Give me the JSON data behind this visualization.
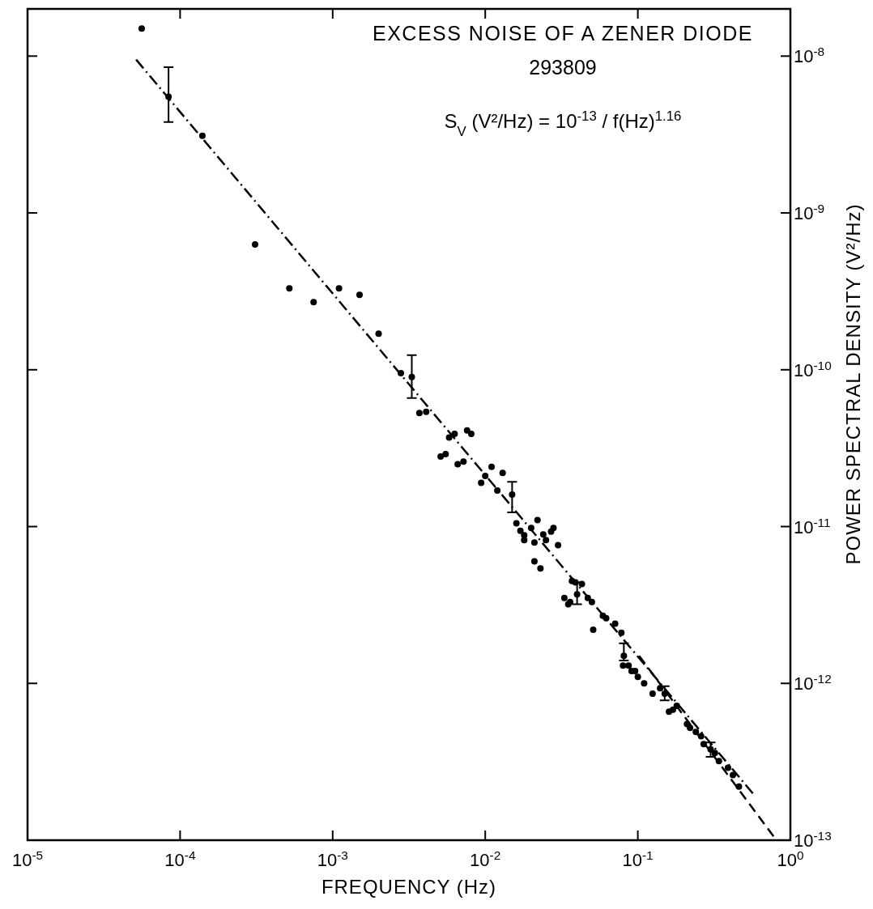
{
  "chart_data": {
    "type": "scatter",
    "title": "EXCESS NOISE OF A ZENER DIODE",
    "subtitle": "293809",
    "xlabel": "FREQUENCY (Hz)",
    "ylabel": "POWER SPECTRAL DENSITY (V²/Hz)",
    "annotations": [
      "S$_{V}$ (V²/Hz) = 10$^{-13}$ / f(Hz)$^{1.16}$"
    ],
    "log": "xy",
    "marker": "circle",
    "xlim": [
      1e-05,
      1
    ],
    "ylim": [
      1e-13,
      2e-08
    ],
    "xticks": [
      {
        "value": 1e-05,
        "label": "10$^{-5}$"
      },
      {
        "value": 0.0001,
        "label": "10$^{-4}$"
      },
      {
        "value": 0.001,
        "label": "10$^{-3}$"
      },
      {
        "value": 0.01,
        "label": "10$^{-2}$"
      },
      {
        "value": 0.1,
        "label": "10$^{-1}$"
      },
      {
        "value": 1,
        "label": "10$^{0}$"
      }
    ],
    "yticks": [
      {
        "value": 1e-13,
        "label": "10$^{-13}$"
      },
      {
        "value": 1e-12,
        "label": "10$^{-12}$"
      },
      {
        "value": 1e-11,
        "label": "10$^{-11}$"
      },
      {
        "value": 1e-10,
        "label": "10$^{-10}$"
      },
      {
        "value": 1e-09,
        "label": "10$^{-9}$"
      },
      {
        "value": 1e-08,
        "label": "10$^{-8}$"
      }
    ],
    "series": [
      {
        "color": "#000000",
        "x": [
          5.6e-05,
          0.00014,
          0.00031,
          0.00052,
          0.00075,
          0.0011,
          0.0015,
          0.002,
          0.0028,
          0.0037,
          0.0041,
          0.0051,
          0.0055,
          0.0058,
          0.0063,
          0.0066,
          0.0072,
          0.0076,
          0.0081,
          0.0094,
          0.01,
          0.011,
          0.012,
          0.013,
          0.016,
          0.017,
          0.018,
          0.018,
          0.02,
          0.021,
          0.021,
          0.022,
          0.023,
          0.024,
          0.025,
          0.027,
          0.028,
          0.03,
          0.033,
          0.035,
          0.036,
          0.037,
          0.039,
          0.043,
          0.047,
          0.05,
          0.051,
          0.059,
          0.062,
          0.071,
          0.078,
          0.08,
          0.087,
          0.091,
          0.096,
          0.1,
          0.11,
          0.125,
          0.14,
          0.16,
          0.17,
          0.18,
          0.21,
          0.22,
          0.24,
          0.26,
          0.27,
          0.32,
          0.34,
          0.39,
          0.42,
          0.46
        ],
        "values": [
          1.5e-08,
          3.1e-09,
          6.3e-10,
          3.3e-10,
          2.7e-10,
          3.3e-10,
          3e-10,
          1.7e-10,
          9.5e-11,
          5.3e-11,
          5.4e-11,
          2.8e-11,
          2.9e-11,
          3.7e-11,
          3.9e-11,
          2.5e-11,
          2.6e-11,
          4.1e-11,
          3.9e-11,
          1.9e-11,
          2.1e-11,
          2.4e-11,
          1.7e-11,
          2.2e-11,
          1.05e-11,
          9.4e-12,
          8.8e-12,
          8.2e-12,
          9.8e-12,
          7.9e-12,
          6e-12,
          1.1e-11,
          5.4e-12,
          8.9e-12,
          8.2e-12,
          9.3e-12,
          9.8e-12,
          7.6e-12,
          3.5e-12,
          3.2e-12,
          3.3e-12,
          4.5e-12,
          4.4e-12,
          4.3e-12,
          3.5e-12,
          3.3e-12,
          2.2e-12,
          2.7e-12,
          2.6e-12,
          2.4e-12,
          2.1e-12,
          1.3e-12,
          1.3e-12,
          1.2e-12,
          1.2e-12,
          1.1e-12,
          1e-12,
          8.6e-13,
          9.3e-13,
          6.6e-13,
          6.8e-13,
          7.2e-13,
          5.5e-13,
          5.2e-13,
          4.9e-13,
          4.6e-13,
          4.1e-13,
          3.6e-13,
          3.2e-13,
          2.9e-13,
          2.6e-13,
          2.2e-13
        ]
      },
      {
        "color": "#000000",
        "x": [
          8.4e-05,
          0.0033,
          0.015,
          0.04,
          0.081,
          0.15,
          0.3
        ],
        "values": [
          5.5e-09,
          9e-11,
          1.6e-11,
          3.7e-12,
          1.5e-12,
          8.6e-13,
          3.8e-13
        ],
        "errors": [
          [
            3.8e-09,
            8.5e-09
          ],
          [
            6.6e-11,
            1.24e-10
          ],
          [
            1.23e-11,
            1.93e-11
          ],
          [
            3.2e-12,
            4.4e-12
          ],
          [
            1.4e-12,
            1.8e-12
          ],
          [
            7.8e-13,
            9.6e-13
          ],
          [
            3.4e-13,
            4.2e-13
          ]
        ]
      },
      {
        "type": "line",
        "color": "#000000",
        "line_style": "dashdot",
        "marker": "none",
        "x": [
          5.15e-05,
          0.59
        ],
        "values": [
          9.5e-09,
          1.9e-13
        ]
      },
      {
        "type": "line",
        "color": "#000000",
        "line_style": "dashed",
        "marker": "none",
        "x": [
          0.102,
          0.81
        ],
        "values": [
          1.5e-12,
          1e-13
        ]
      }
    ]
  }
}
